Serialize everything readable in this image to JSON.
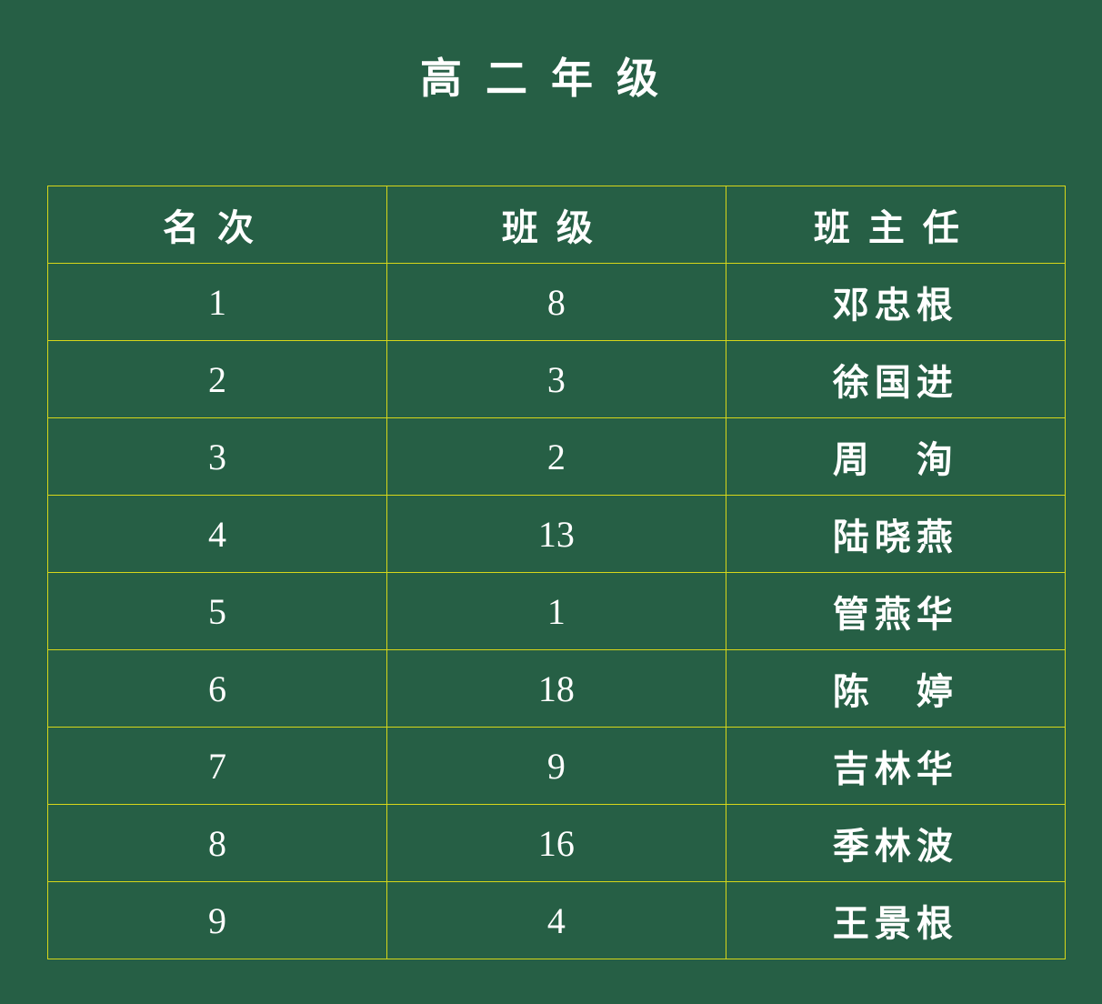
{
  "title": "高二年级",
  "table": {
    "headers": [
      "名次",
      "班级",
      "班主任"
    ],
    "rows": [
      {
        "rank": "1",
        "class": "8",
        "teacher": "邓忠根"
      },
      {
        "rank": "2",
        "class": "3",
        "teacher": "徐国进"
      },
      {
        "rank": "3",
        "class": "2",
        "teacher": "周　洵"
      },
      {
        "rank": "4",
        "class": "13",
        "teacher": "陆晓燕"
      },
      {
        "rank": "5",
        "class": "1",
        "teacher": "管燕华"
      },
      {
        "rank": "6",
        "class": "18",
        "teacher": "陈　婷"
      },
      {
        "rank": "7",
        "class": "9",
        "teacher": "吉林华"
      },
      {
        "rank": "8",
        "class": "16",
        "teacher": "季林波"
      },
      {
        "rank": "9",
        "class": "4",
        "teacher": "王景根"
      }
    ]
  },
  "colors": {
    "background": "#265f45",
    "grid": "#d6d61a",
    "text": "#ffffff"
  }
}
